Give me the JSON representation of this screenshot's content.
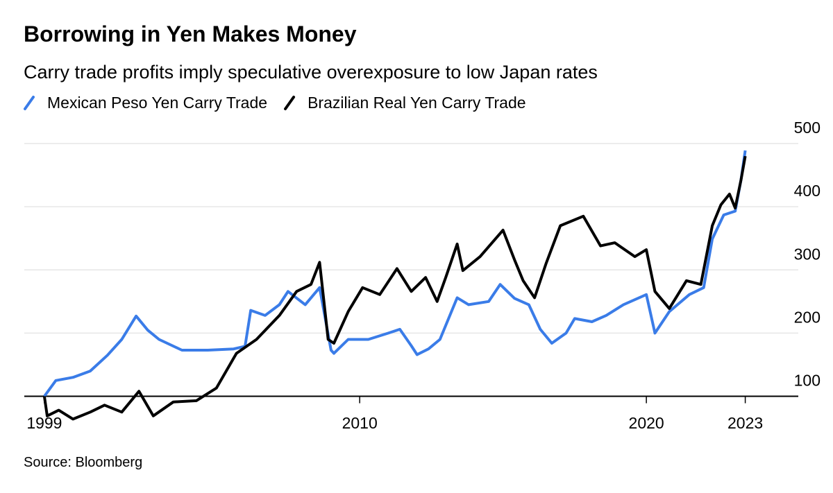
{
  "chart_data": {
    "type": "line",
    "title": "Borrowing in Yen Makes Money",
    "subtitle": "Carry trade profits imply speculative overexposure to low Japan rates",
    "source": "Source: Bloomberg",
    "xlim": [
      1998.3,
      2025.3
    ],
    "xticks": [
      {
        "value": 1999.0,
        "label": "1999"
      },
      {
        "value": 2010.0,
        "label": "2010"
      },
      {
        "value": 2020.0,
        "label": "2020"
      },
      {
        "value": 2023.45,
        "label": "2023"
      }
    ],
    "ylim": [
      60,
      500
    ],
    "yticks": [
      100,
      200,
      300,
      400,
      500
    ],
    "grid": true,
    "series": [
      {
        "name": "Mexican Peso Yen Carry Trade",
        "color": "#3a7ce8",
        "x": [
          1999.0,
          1999.4,
          2000.0,
          2000.6,
          2001.2,
          2001.7,
          2002.2,
          2002.6,
          2003.0,
          2003.8,
          2004.7,
          2005.6,
          2006.0,
          2006.2,
          2006.7,
          2007.2,
          2007.5,
          2008.1,
          2008.6,
          2009.0,
          2009.1,
          2009.6,
          2010.3,
          2011.0,
          2011.4,
          2011.8,
          2012.0,
          2012.4,
          2012.8,
          2013.4,
          2013.8,
          2014.5,
          2014.9,
          2015.4,
          2015.9,
          2016.3,
          2016.7,
          2017.2,
          2017.5,
          2018.1,
          2018.6,
          2019.2,
          2020.0,
          2020.3,
          2020.8,
          2021.5,
          2022.0,
          2022.3,
          2022.7,
          2023.1,
          2023.3,
          2023.45
        ],
        "values": [
          100,
          125,
          130,
          140,
          165,
          190,
          227,
          205,
          190,
          173,
          173,
          175,
          179,
          236,
          228,
          245,
          266,
          245,
          272,
          173,
          168,
          190,
          190,
          200,
          206,
          180,
          166,
          175,
          190,
          256,
          245,
          250,
          277,
          255,
          245,
          206,
          184,
          200,
          223,
          218,
          228,
          245,
          261,
          200,
          234,
          261,
          272,
          349,
          387,
          393,
          442,
          489
        ]
      },
      {
        "name": "Brazilian Real Yen Carry Trade",
        "color": "#000000",
        "x": [
          1999.0,
          1999.1,
          1999.5,
          2000.0,
          2000.6,
          2001.1,
          2001.7,
          2002.3,
          2002.8,
          2003.5,
          2004.3,
          2005.0,
          2005.7,
          2006.4,
          2007.2,
          2007.8,
          2008.3,
          2008.6,
          2008.9,
          2009.1,
          2009.6,
          2010.1,
          2010.7,
          2011.3,
          2011.8,
          2012.3,
          2012.7,
          2013.0,
          2013.4,
          2013.6,
          2014.2,
          2015.0,
          2015.4,
          2015.7,
          2016.1,
          2016.5,
          2017.0,
          2017.8,
          2018.4,
          2018.9,
          2019.6,
          2020.0,
          2020.3,
          2020.8,
          2021.4,
          2021.9,
          2022.3,
          2022.6,
          2022.9,
          2023.1,
          2023.3,
          2023.45
        ],
        "values": [
          100,
          69,
          78,
          64,
          75,
          86,
          75,
          108,
          69,
          91,
          93,
          113,
          168,
          190,
          228,
          266,
          277,
          312,
          190,
          184,
          234,
          272,
          261,
          302,
          266,
          288,
          250,
          288,
          341,
          299,
          321,
          363,
          316,
          283,
          256,
          310,
          370,
          385,
          338,
          343,
          321,
          332,
          266,
          239,
          283,
          277,
          370,
          403,
          420,
          398,
          442,
          480
        ]
      }
    ]
  }
}
